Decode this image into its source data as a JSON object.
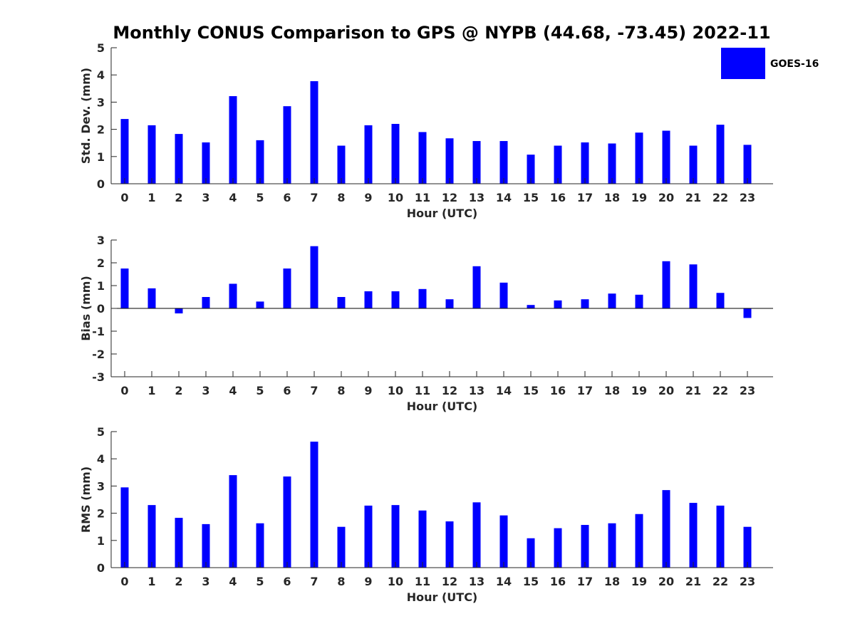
{
  "title": "Monthly CONUS Comparison to GPS @ NYPB (44.68, -73.45) 2022-11",
  "colors": {
    "bar": "#0000ff",
    "axis": "#262626",
    "background": "#ffffff"
  },
  "legend": {
    "label": "GOES-16",
    "placement": "top-right"
  },
  "chart_data": [
    {
      "type": "bar",
      "categories": [
        "0",
        "1",
        "2",
        "3",
        "4",
        "5",
        "6",
        "7",
        "8",
        "9",
        "10",
        "11",
        "12",
        "13",
        "14",
        "15",
        "16",
        "17",
        "18",
        "19",
        "20",
        "21",
        "22",
        "23"
      ],
      "series": [
        {
          "name": "GOES-16",
          "values": [
            2.38,
            2.15,
            1.83,
            1.52,
            3.22,
            1.6,
            2.85,
            3.77,
            1.4,
            2.15,
            2.2,
            1.9,
            1.67,
            1.57,
            1.57,
            1.07,
            1.4,
            1.52,
            1.48,
            1.88,
            1.95,
            1.4,
            2.17,
            1.43
          ]
        }
      ],
      "xlabel": "Hour (UTC)",
      "ylabel": "Std. Dev. (mm)",
      "ylim": [
        0,
        5
      ],
      "yticks": [
        "0",
        "1",
        "2",
        "3",
        "4",
        "5"
      ]
    },
    {
      "type": "bar",
      "categories": [
        "0",
        "1",
        "2",
        "3",
        "4",
        "5",
        "6",
        "7",
        "8",
        "9",
        "10",
        "11",
        "12",
        "13",
        "14",
        "15",
        "16",
        "17",
        "18",
        "19",
        "20",
        "21",
        "22",
        "23"
      ],
      "series": [
        {
          "name": "GOES-16",
          "values": [
            1.75,
            0.88,
            -0.22,
            0.5,
            1.08,
            0.3,
            1.75,
            2.73,
            0.5,
            0.75,
            0.75,
            0.85,
            0.4,
            1.85,
            1.13,
            0.15,
            0.35,
            0.4,
            0.65,
            0.6,
            2.07,
            1.93,
            0.68,
            -0.42
          ]
        }
      ],
      "xlabel": "Hour (UTC)",
      "ylabel": "Bias (mm)",
      "ylim": [
        -3,
        3
      ],
      "yticks": [
        "-3",
        "-2",
        "-1",
        "0",
        "1",
        "2",
        "3"
      ]
    },
    {
      "type": "bar",
      "categories": [
        "0",
        "1",
        "2",
        "3",
        "4",
        "5",
        "6",
        "7",
        "8",
        "9",
        "10",
        "11",
        "12",
        "13",
        "14",
        "15",
        "16",
        "17",
        "18",
        "19",
        "20",
        "21",
        "22",
        "23"
      ],
      "series": [
        {
          "name": "GOES-16",
          "values": [
            2.95,
            2.3,
            1.83,
            1.6,
            3.4,
            1.63,
            3.35,
            4.63,
            1.5,
            2.28,
            2.3,
            2.1,
            1.7,
            2.4,
            1.92,
            1.08,
            1.45,
            1.57,
            1.63,
            1.97,
            2.85,
            2.38,
            2.28,
            1.5
          ]
        }
      ],
      "xlabel": "Hour (UTC)",
      "ylabel": "RMS (mm)",
      "ylim": [
        0,
        5
      ],
      "yticks": [
        "0",
        "1",
        "2",
        "3",
        "4",
        "5"
      ]
    }
  ]
}
